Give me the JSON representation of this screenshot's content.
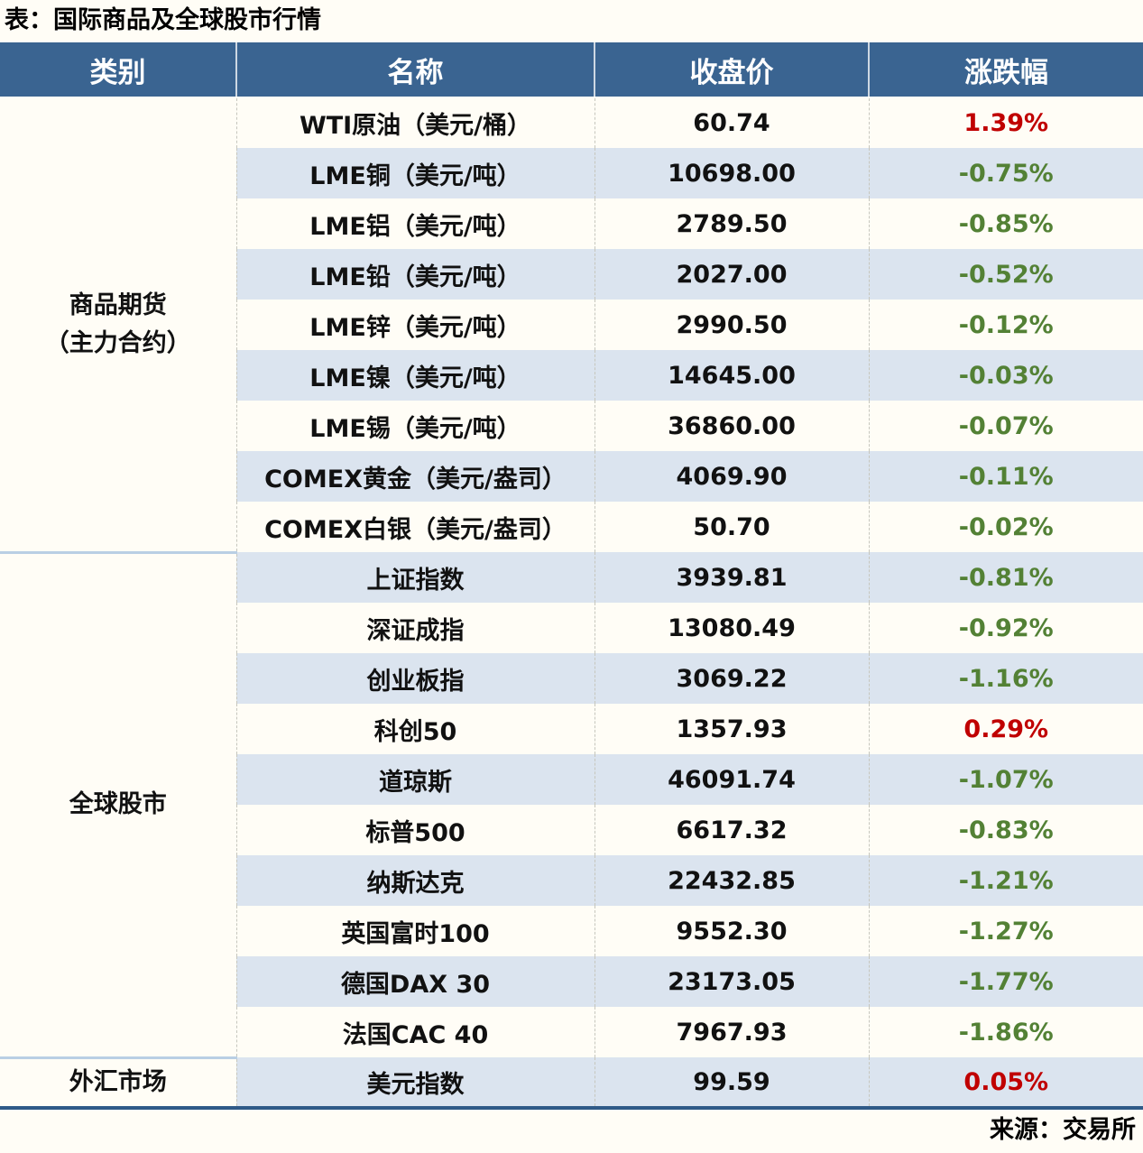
{
  "chart_data": {
    "type": "table",
    "title": "表：国际商品及全球股市行情",
    "columns": [
      "类别",
      "名称",
      "收盘价",
      "涨跌幅"
    ],
    "groups": [
      {
        "category_lines": [
          "商品期货",
          "（主力合约）"
        ],
        "rows": [
          {
            "name": "WTI原油（美元/桶）",
            "close": "60.74",
            "change": "1.39%"
          },
          {
            "name": "LME铜（美元/吨）",
            "close": "10698.00",
            "change": "-0.75%"
          },
          {
            "name": "LME铝（美元/吨）",
            "close": "2789.50",
            "change": "-0.85%"
          },
          {
            "name": "LME铅（美元/吨）",
            "close": "2027.00",
            "change": "-0.52%"
          },
          {
            "name": "LME锌（美元/吨）",
            "close": "2990.50",
            "change": "-0.12%"
          },
          {
            "name": "LME镍（美元/吨）",
            "close": "14645.00",
            "change": "-0.03%"
          },
          {
            "name": "LME锡（美元/吨）",
            "close": "36860.00",
            "change": "-0.07%"
          },
          {
            "name": "COMEX黄金（美元/盎司）",
            "close": "4069.90",
            "change": "-0.11%"
          },
          {
            "name": "COMEX白银（美元/盎司）",
            "close": "50.70",
            "change": "-0.02%"
          }
        ]
      },
      {
        "category_lines": [
          "全球股市"
        ],
        "rows": [
          {
            "name": "上证指数",
            "close": "3939.81",
            "change": "-0.81%"
          },
          {
            "name": "深证成指",
            "close": "13080.49",
            "change": "-0.92%"
          },
          {
            "name": "创业板指",
            "close": "3069.22",
            "change": "-1.16%"
          },
          {
            "name": "科创50",
            "close": "1357.93",
            "change": "0.29%"
          },
          {
            "name": "道琼斯",
            "close": "46091.74",
            "change": "-1.07%"
          },
          {
            "name": "标普500",
            "close": "6617.32",
            "change": "-0.83%"
          },
          {
            "name": "纳斯达克",
            "close": "22432.85",
            "change": "-1.21%"
          },
          {
            "name": "英国富时100",
            "close": "9552.30",
            "change": "-1.27%"
          },
          {
            "name": "德国DAX 30",
            "close": "23173.05",
            "change": "-1.77%"
          },
          {
            "name": "法国CAC 40",
            "close": "7967.93",
            "change": "-1.86%"
          }
        ]
      },
      {
        "category_lines": [
          "外汇市场"
        ],
        "rows": [
          {
            "name": "美元指数",
            "close": "99.59",
            "change": "0.05%"
          }
        ]
      }
    ],
    "source": "来源：交易所",
    "layout": {
      "grid": "striped-rows",
      "stripe_order": "white-first",
      "legend_position": "none"
    }
  },
  "colors": {
    "header_bg": "#3a6491",
    "stripe": "#dbe4ef",
    "paper": "#fffdf6",
    "positive_red": "#c00000",
    "negative_green": "#538135",
    "table_bottom_border": "#2f5a88",
    "group_separator": "#b9cfe4"
  }
}
